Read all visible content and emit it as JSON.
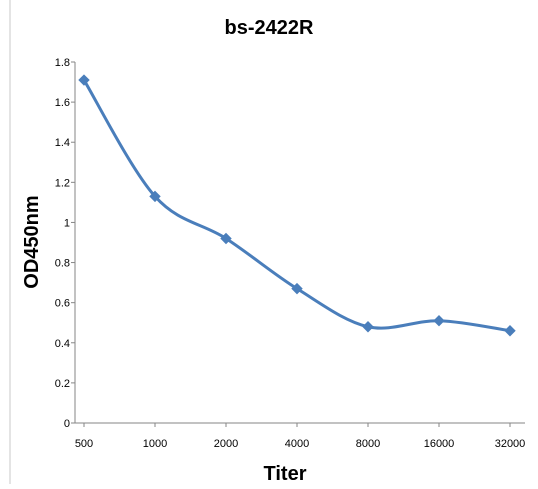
{
  "chart_data": {
    "type": "line",
    "title": "bs-2422R",
    "xlabel": "Titer",
    "ylabel": "OD450nm",
    "categories": [
      "500",
      "1000",
      "2000",
      "4000",
      "8000",
      "16000",
      "32000"
    ],
    "series": [
      {
        "values": [
          1.71,
          1.13,
          0.92,
          0.67,
          0.48,
          0.51,
          0.46
        ]
      }
    ],
    "ylim": [
      0,
      1.8
    ],
    "yticks": [
      "0",
      "0.2",
      "0.4",
      "0.6",
      "0.8",
      "1",
      "1.2",
      "1.4",
      "1.6",
      "1.8"
    ],
    "grid": false,
    "legend": "none",
    "line_color": "#4a7ebb",
    "marker": "diamond"
  }
}
